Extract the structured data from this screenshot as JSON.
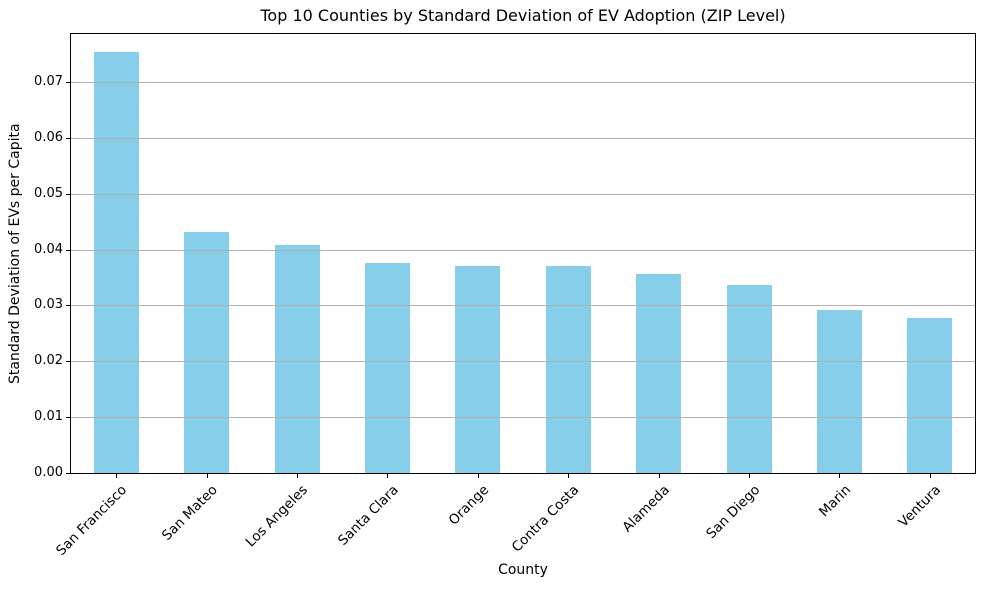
{
  "chart_data": {
    "type": "bar",
    "title": "Top 10 Counties by Standard Deviation of EV Adoption (ZIP Level)",
    "xlabel": "County",
    "ylabel": "Standard Deviation of EVs per Capita",
    "categories": [
      "San Francisco",
      "San Mateo",
      "Los Angeles",
      "Santa Clara",
      "Orange",
      "Contra Costa",
      "Alameda",
      "San Diego",
      "Marin",
      "Ventura"
    ],
    "values": [
      0.0754,
      0.0431,
      0.0408,
      0.0376,
      0.0371,
      0.037,
      0.0356,
      0.0336,
      0.0292,
      0.0277
    ],
    "ylim": [
      0,
      0.0786
    ],
    "yticks": [
      0.0,
      0.01,
      0.02,
      0.03,
      0.04,
      0.05,
      0.06,
      0.07
    ],
    "ytick_labels": [
      "0.00",
      "0.01",
      "0.02",
      "0.03",
      "0.04",
      "0.05",
      "0.06",
      "0.07"
    ],
    "bar_color": "#87CEEB",
    "grid_color": "#b0b0b0",
    "grid": "horizontal-gridlines-on-drawn-above-bars",
    "legend": "none",
    "x_tick_label_rotation_deg": 45
  }
}
